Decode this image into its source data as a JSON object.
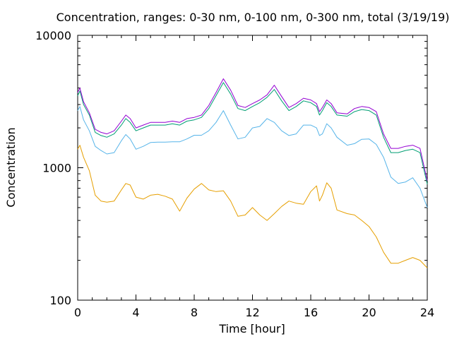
{
  "chart_data": {
    "type": "line",
    "title": "Concentration, ranges: 0-30 nm, 0-100 nm, 0-300 nm, total (3/19/19)",
    "xlabel": "Time [hour]",
    "ylabel": "Concentration",
    "xlim": [
      0,
      24
    ],
    "ylim": [
      100,
      10000
    ],
    "y_scale": "log",
    "grid": false,
    "legend": "none",
    "x_ticks": [
      0,
      4,
      8,
      12,
      16,
      20,
      24
    ],
    "y_ticks": [
      100,
      1000,
      10000
    ],
    "x_tick_labels": [
      "0",
      "4",
      "8",
      "12",
      "16",
      "20",
      "24"
    ],
    "y_tick_labels": [
      "100",
      "1000",
      "10000"
    ],
    "series": [
      {
        "color": "#e69f00",
        "x": [
          0,
          0.15,
          0.4,
          0.8,
          1.2,
          1.6,
          2,
          2.5,
          3,
          3.3,
          3.6,
          4,
          4.5,
          5,
          5.5,
          6,
          6.5,
          7,
          7.5,
          8,
          8.5,
          9,
          9.5,
          10,
          10.5,
          11,
          11.5,
          12,
          12.5,
          13,
          13.5,
          14,
          14.5,
          15,
          15.5,
          16,
          16.4,
          16.6,
          16.8,
          17.1,
          17.4,
          17.8,
          18.5,
          19,
          19.5,
          20,
          20.5,
          21,
          21.5,
          22,
          22.5,
          23,
          23.5,
          24
        ],
        "values": [
          1380,
          1480,
          1200,
          950,
          620,
          560,
          550,
          560,
          680,
          760,
          740,
          600,
          580,
          620,
          630,
          610,
          580,
          470,
          590,
          690,
          760,
          680,
          660,
          670,
          560,
          430,
          440,
          500,
          440,
          400,
          450,
          510,
          560,
          540,
          530,
          660,
          730,
          560,
          620,
          770,
          700,
          480,
          450,
          440,
          400,
          360,
          300,
          230,
          190,
          190,
          200,
          210,
          200,
          175
        ]
      },
      {
        "color": "#56b4e9",
        "x": [
          0,
          0.15,
          0.4,
          0.8,
          1.2,
          1.6,
          2,
          2.5,
          3,
          3.3,
          3.6,
          4,
          4.5,
          5,
          5.5,
          6,
          6.5,
          7,
          7.5,
          8,
          8.5,
          9,
          9.5,
          10,
          10.5,
          11,
          11.5,
          12,
          12.5,
          13,
          13.5,
          14,
          14.5,
          15,
          15.5,
          16,
          16.4,
          16.6,
          16.8,
          17.1,
          17.4,
          17.8,
          18.5,
          19,
          19.5,
          20,
          20.5,
          21,
          21.5,
          22,
          22.5,
          23,
          23.5,
          24
        ],
        "values": [
          2700,
          2900,
          2300,
          1900,
          1450,
          1350,
          1270,
          1300,
          1600,
          1780,
          1650,
          1380,
          1450,
          1550,
          1560,
          1560,
          1570,
          1570,
          1650,
          1760,
          1760,
          1900,
          2200,
          2700,
          2100,
          1650,
          1700,
          2000,
          2050,
          2350,
          2200,
          1900,
          1750,
          1800,
          2100,
          2100,
          2000,
          1750,
          1800,
          2150,
          2000,
          1700,
          1480,
          1520,
          1640,
          1650,
          1500,
          1200,
          850,
          760,
          780,
          840,
          700,
          500
        ]
      },
      {
        "color": "#009e73",
        "x": [
          0,
          0.15,
          0.4,
          0.8,
          1.2,
          1.6,
          2,
          2.5,
          3,
          3.3,
          3.6,
          4,
          4.5,
          5,
          5.5,
          6,
          6.5,
          7,
          7.5,
          8,
          8.5,
          9,
          9.5,
          10,
          10.5,
          11,
          11.5,
          12,
          12.5,
          13,
          13.5,
          14,
          14.5,
          15,
          15.5,
          16,
          16.4,
          16.6,
          16.8,
          17.1,
          17.4,
          17.8,
          18.5,
          19,
          19.5,
          20,
          20.5,
          21,
          21.5,
          22,
          22.5,
          23,
          23.5,
          24
        ],
        "values": [
          3500,
          3800,
          3000,
          2500,
          1850,
          1750,
          1700,
          1800,
          2100,
          2350,
          2200,
          1900,
          2000,
          2100,
          2100,
          2100,
          2150,
          2100,
          2250,
          2300,
          2400,
          2800,
          3500,
          4400,
          3600,
          2800,
          2700,
          2900,
          3100,
          3400,
          3900,
          3200,
          2700,
          2900,
          3200,
          3100,
          2900,
          2500,
          2700,
          3100,
          2900,
          2500,
          2450,
          2650,
          2750,
          2700,
          2500,
          1700,
          1300,
          1300,
          1350,
          1380,
          1300,
          750
        ]
      },
      {
        "color": "#9400d3",
        "x": [
          0,
          0.15,
          0.4,
          0.8,
          1.2,
          1.6,
          2,
          2.5,
          3,
          3.3,
          3.6,
          4,
          4.5,
          5,
          5.5,
          6,
          6.5,
          7,
          7.5,
          8,
          8.5,
          9,
          9.5,
          10,
          10.5,
          11,
          11.5,
          12,
          12.5,
          13,
          13.5,
          14,
          14.5,
          15,
          15.5,
          16,
          16.4,
          16.6,
          16.8,
          17.1,
          17.4,
          17.8,
          18.5,
          19,
          19.5,
          20,
          20.5,
          21,
          21.5,
          22,
          22.5,
          23,
          23.5,
          24
        ],
        "values": [
          3700,
          4000,
          3150,
          2600,
          1950,
          1850,
          1800,
          1900,
          2250,
          2500,
          2350,
          2000,
          2100,
          2200,
          2200,
          2200,
          2250,
          2200,
          2350,
          2400,
          2500,
          2950,
          3700,
          4700,
          3850,
          2950,
          2850,
          3050,
          3250,
          3550,
          4200,
          3450,
          2850,
          3050,
          3350,
          3250,
          3050,
          2650,
          2850,
          3250,
          3050,
          2600,
          2550,
          2800,
          2900,
          2850,
          2650,
          1800,
          1400,
          1400,
          1450,
          1480,
          1400,
          800
        ]
      }
    ]
  }
}
